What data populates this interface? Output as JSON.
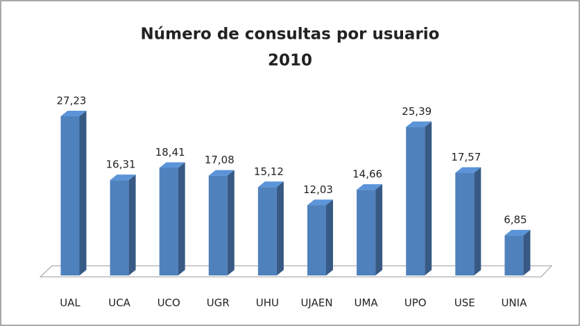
{
  "chart_data": {
    "type": "bar3d",
    "title": "Número de consultas por usuario",
    "subtitle": "2010",
    "categories": [
      "UAL",
      "UCA",
      "UCO",
      "UGR",
      "UHU",
      "UJAEN",
      "UMA",
      "UPO",
      "USE",
      "UNIA"
    ],
    "values": [
      27.23,
      16.31,
      18.41,
      17.08,
      15.12,
      12.03,
      14.66,
      25.39,
      17.57,
      6.85
    ],
    "value_labels": [
      "27,23",
      "16,31",
      "18,41",
      "17,08",
      "15,12",
      "12,03",
      "14,66",
      "25,39",
      "17,57",
      "6,85"
    ],
    "color": "#4f81bd"
  }
}
